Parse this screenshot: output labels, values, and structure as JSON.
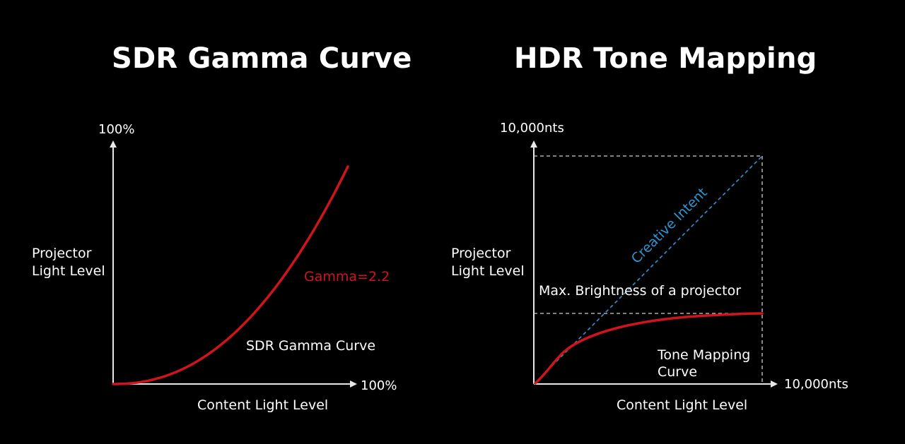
{
  "colors": {
    "background": "#000000",
    "text": "#ffffff",
    "axis": "#e8e8e8",
    "curve": "#d0141e",
    "creative_intent": "#2e95d3",
    "guide": "#cfcfcf"
  },
  "left_panel": {
    "title": "SDR Gamma Curve",
    "y_axis_label_line1": "Projector",
    "y_axis_label_line2": "Light Level",
    "y_axis_max": "100%",
    "x_axis_max": "100%",
    "x_axis_label": "Content Light Level",
    "curve_label": "Gamma=2.2",
    "curve_name": "SDR Gamma Curve",
    "gamma": 2.2
  },
  "right_panel": {
    "title": "HDR Tone Mapping",
    "y_axis_label_line1": "Projector",
    "y_axis_label_line2": "Light Level",
    "y_axis_max": "10,000nts",
    "x_axis_max": "10,000nts",
    "x_axis_label": "Content Light Level",
    "diagonal_label": "Creative Intent",
    "max_brightness_label": "Max. Brightness of a projector",
    "curve_label_line1": "Tone Mapping",
    "curve_label_line2": "Curve"
  }
}
